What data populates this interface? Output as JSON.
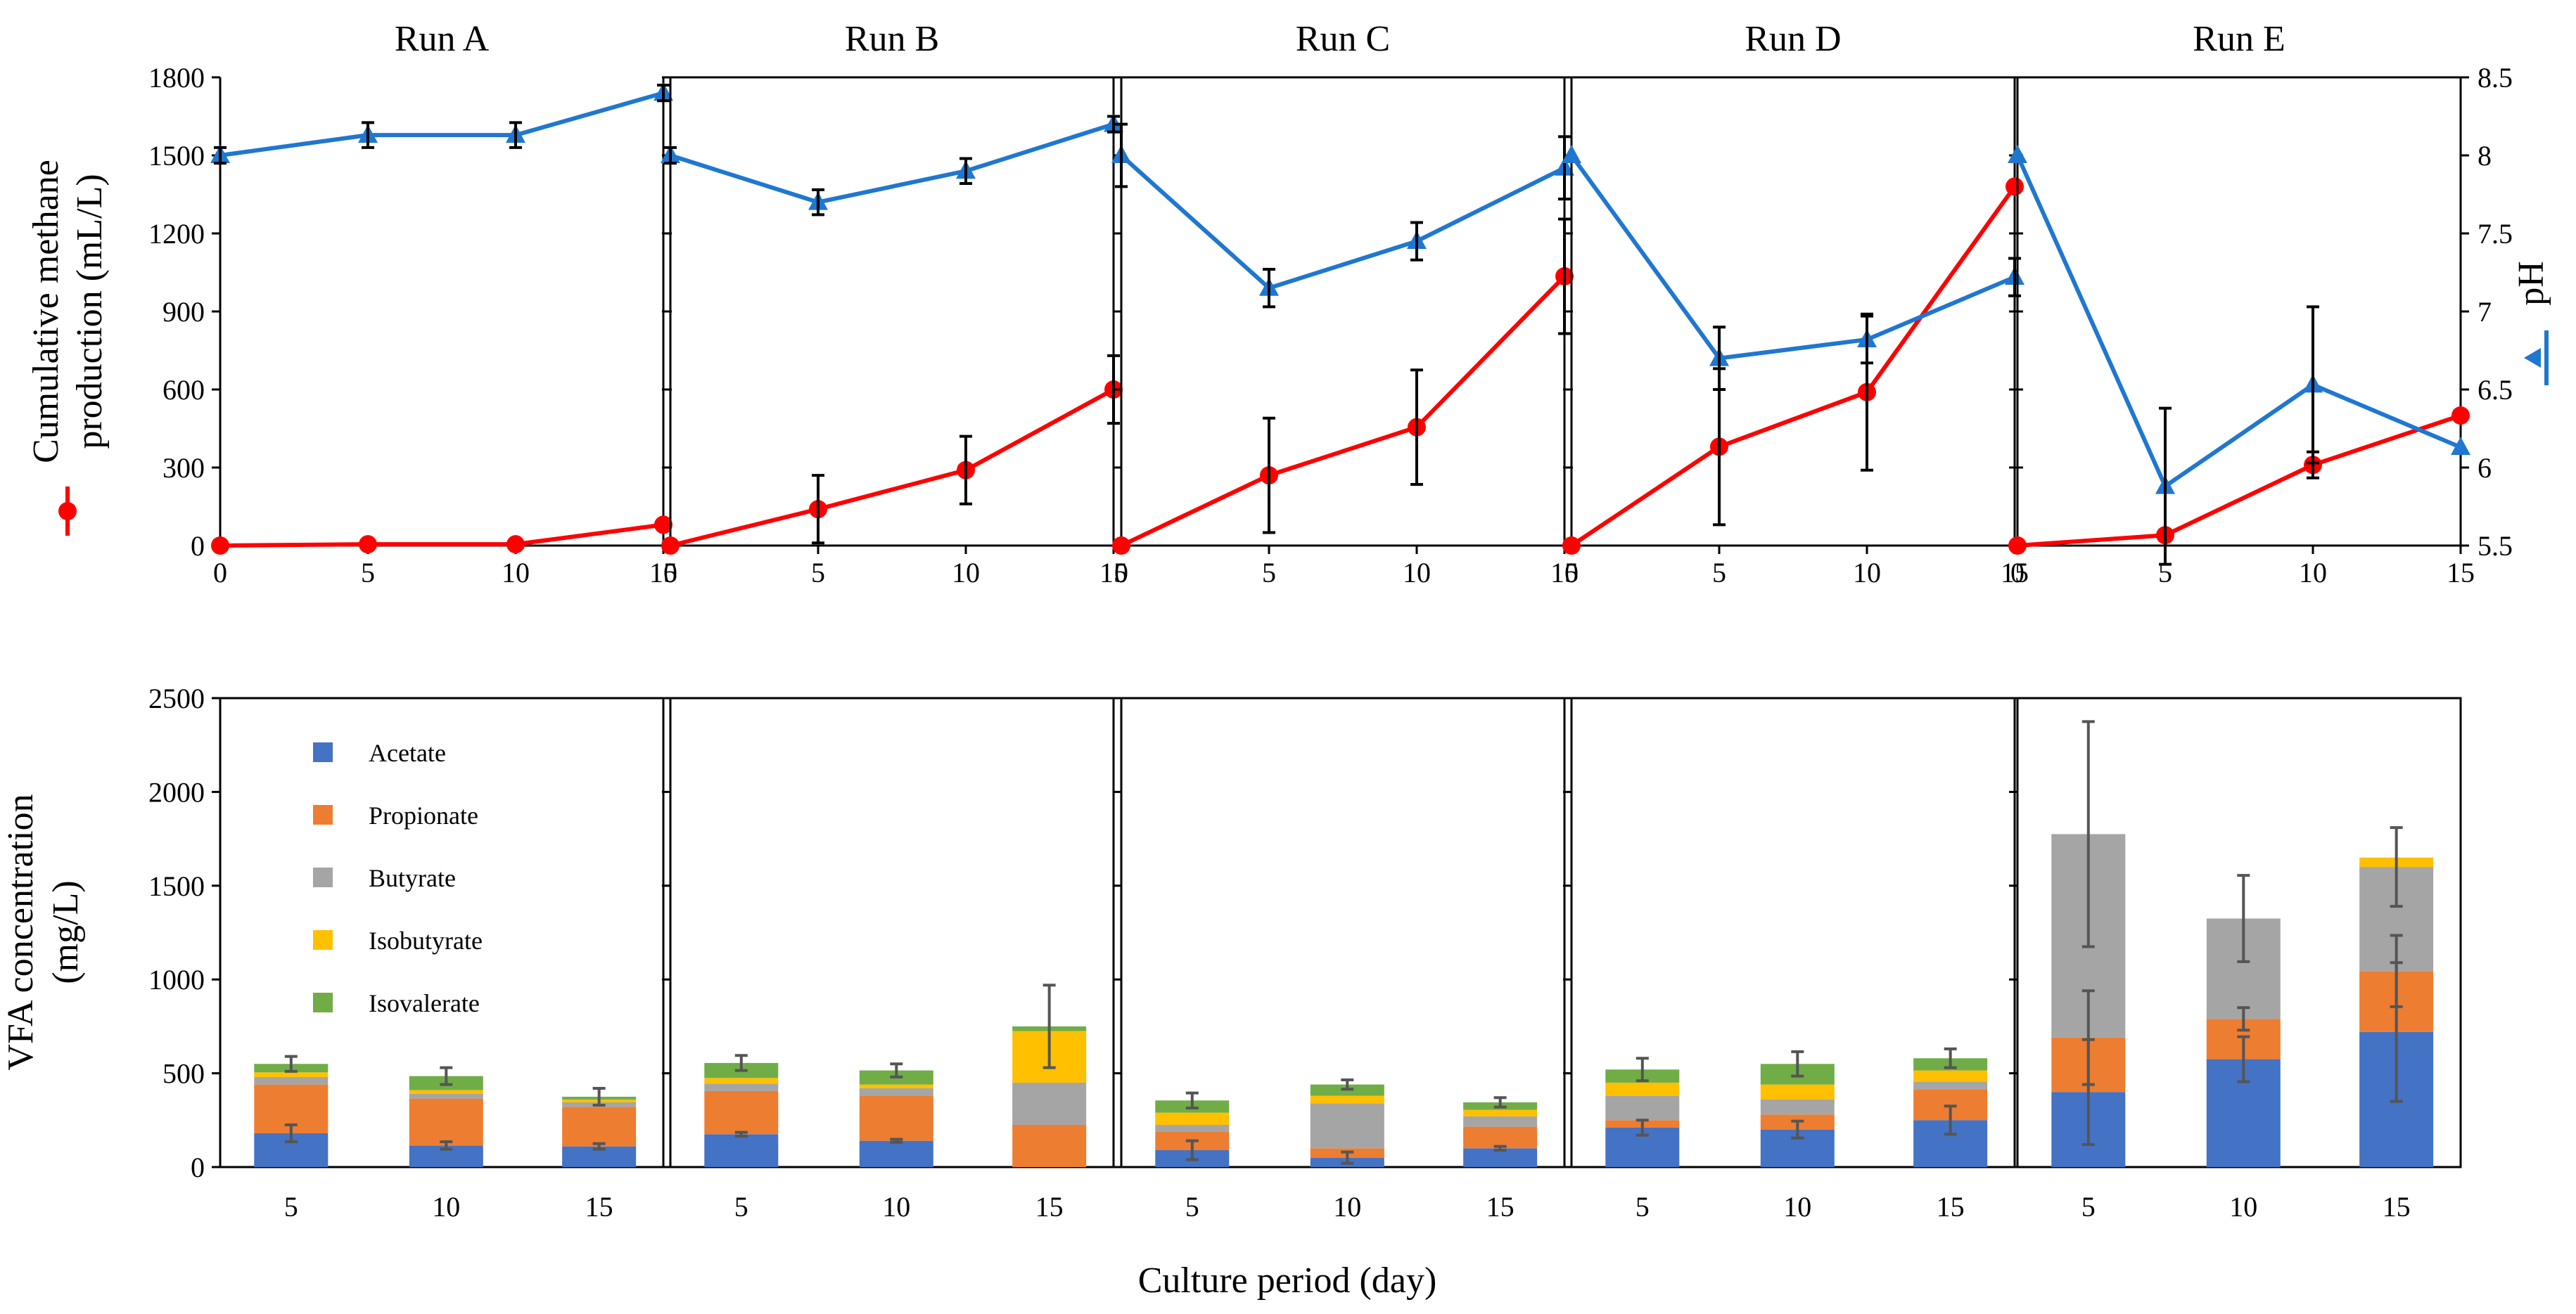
{
  "chart_data": {
    "type": "composite",
    "runs": [
      "Run A",
      "Run B",
      "Run C",
      "Run D",
      "Run E"
    ],
    "top": {
      "type": "line",
      "x": [
        0,
        5,
        10,
        15
      ],
      "x_ticks": [
        "0",
        "5",
        "10",
        "15"
      ],
      "left_axis": {
        "label_line1": "Cumulative methane",
        "label_line2": "production (mL/L)",
        "ylim": [
          0,
          1800
        ],
        "ticks": [
          "0",
          "300",
          "600",
          "900",
          "1200",
          "1500",
          "1800"
        ]
      },
      "right_axis": {
        "label": "pH",
        "ylim": [
          5.5,
          8.5
        ],
        "ticks": [
          "5.5",
          "6",
          "6.5",
          "7",
          "7.5",
          "8",
          "8.5"
        ]
      },
      "methane": {
        "color": "#ff0000",
        "series": [
          {
            "values": [
              0,
              5,
              5,
              80
            ],
            "errors": [
              0,
              0,
              0,
              0
            ]
          },
          {
            "values": [
              0,
              140,
              290,
              600
            ],
            "errors": [
              0,
              130,
              130,
              130
            ]
          },
          {
            "values": [
              0,
              270,
              455,
              1035
            ],
            "errors": [
              0,
              220,
              220,
              220
            ]
          },
          {
            "values": [
              0,
              380,
              590,
              1380
            ],
            "errors": [
              0,
              300,
              300,
              0
            ]
          },
          {
            "values": [
              0,
              40,
              310,
              500
            ],
            "errors": [
              0,
              0,
              50,
              0
            ]
          }
        ]
      },
      "ph": {
        "color": "#1f77d0",
        "series": [
          {
            "values": [
              8.0,
              8.13,
              8.13,
              8.4
            ],
            "errors": [
              0.05,
              0.08,
              0.08,
              0.05
            ]
          },
          {
            "values": [
              8.0,
              7.7,
              7.9,
              8.2
            ],
            "errors": [
              0.05,
              0.08,
              0.08,
              0.05
            ]
          },
          {
            "values": [
              8.0,
              7.15,
              7.45,
              7.92
            ],
            "errors": [
              0.2,
              0.12,
              0.12,
              0.2
            ]
          },
          {
            "values": [
              8.0,
              6.7,
              6.82,
              7.22
            ],
            "errors": [
              0,
              0.2,
              0.15,
              0.12
            ]
          },
          {
            "values": [
              8.0,
              5.88,
              6.53,
              6.13
            ],
            "errors": [
              0,
              0.5,
              0.5,
              0
            ]
          }
        ]
      }
    },
    "bottom": {
      "type": "stacked_bar",
      "categories": [
        "5",
        "10",
        "15"
      ],
      "ylabel_line1": "VFA concentration",
      "ylabel_line2": "(mg/L)",
      "ylim": [
        0,
        2500
      ],
      "ticks": [
        "0",
        "500",
        "1000",
        "1500",
        "2000",
        "2500"
      ],
      "xlabel": "Culture period (day)",
      "legend": [
        "Acetate",
        "Propionate",
        "Butyrate",
        "Isobutyrate",
        "Isovalerate"
      ],
      "colors": [
        "#4472c4",
        "#ed7d31",
        "#a5a5a5",
        "#ffc000",
        "#70ad47"
      ],
      "runs": [
        {
          "values": [
            [
              180,
              260,
              40,
              25,
              45
            ],
            [
              115,
              250,
              25,
              20,
              75
            ],
            [
              110,
              210,
              25,
              15,
              15
            ]
          ],
          "errors": [
            [
              45,
              0,
              0,
              0,
              40
            ],
            [
              20,
              0,
              0,
              0,
              45
            ],
            [
              15,
              0,
              0,
              0,
              45
            ]
          ]
        },
        {
          "values": [
            [
              175,
              230,
              40,
              30,
              80
            ],
            [
              140,
              240,
              40,
              20,
              75
            ],
            [
              0,
              225,
              225,
              275,
              25
            ]
          ],
          "errors": [
            [
              10,
              0,
              0,
              0,
              40
            ],
            [
              8,
              0,
              0,
              0,
              35
            ],
            [
              0,
              0,
              0,
              0,
              220
            ]
          ]
        },
        {
          "values": [
            [
              90,
              100,
              35,
              65,
              65
            ],
            [
              50,
              50,
              240,
              40,
              60
            ],
            [
              100,
              115,
              55,
              35,
              40
            ]
          ],
          "errors": [
            [
              50,
              0,
              0,
              0,
              40
            ],
            [
              30,
              0,
              0,
              0,
              25
            ],
            [
              10,
              0,
              0,
              0,
              25
            ]
          ]
        },
        {
          "values": [
            [
              210,
              40,
              130,
              70,
              70
            ],
            [
              200,
              80,
              80,
              80,
              110
            ],
            [
              250,
              165,
              40,
              60,
              65
            ]
          ],
          "errors": [
            [
              40,
              0,
              0,
              0,
              60
            ],
            [
              45,
              0,
              0,
              0,
              65
            ],
            [
              75,
              0,
              0,
              0,
              50
            ]
          ]
        },
        {
          "values": [
            [
              400,
              290,
              1085,
              0,
              0
            ],
            [
              575,
              215,
              535,
              0,
              0
            ],
            [
              720,
              325,
              555,
              50,
              0
            ]
          ],
          "errors": [
            [
              280,
              250,
              600,
              0,
              0
            ],
            [
              120,
              60,
              230,
              0,
              0
            ],
            [
              370,
              190,
              210,
              0,
              0
            ]
          ]
        }
      ]
    }
  }
}
